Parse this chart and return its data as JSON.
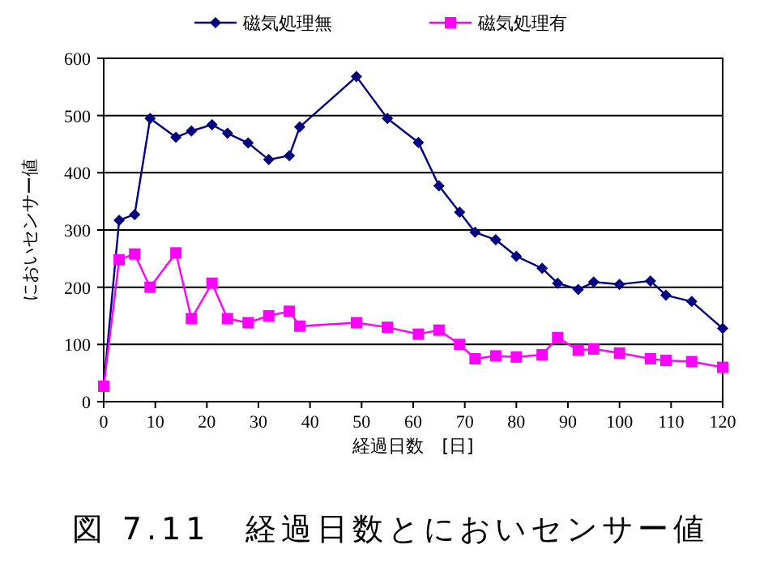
{
  "chart_data": {
    "type": "line",
    "title": "図 7.11　経過日数とにおいセンサー値",
    "xlabel": "経過日数　[日]",
    "ylabel": "においセンサー値",
    "x": [
      0,
      3,
      6,
      9,
      14,
      17,
      21,
      24,
      28,
      32,
      36,
      38,
      49,
      55,
      61,
      65,
      69,
      72,
      76,
      80,
      85,
      88,
      92,
      95,
      100,
      106,
      109,
      114,
      120
    ],
    "series": [
      {
        "name": "磁気処理無",
        "color": "#000080",
        "marker": "diamond",
        "values": [
          27,
          317,
          327,
          495,
          462,
          473,
          484,
          469,
          452,
          423,
          430,
          480,
          568,
          495,
          453,
          377,
          331,
          296,
          283,
          254,
          233,
          207,
          196,
          209,
          205,
          211,
          186,
          175,
          128
        ]
      },
      {
        "name": "磁気処理有",
        "color": "#ff00ff",
        "marker": "square",
        "values": [
          27,
          248,
          258,
          200,
          260,
          145,
          207,
          145,
          138,
          150,
          158,
          132,
          138,
          130,
          118,
          125,
          100,
          75,
          80,
          78,
          82,
          112,
          90,
          92,
          85,
          75,
          72,
          70,
          60
        ]
      }
    ],
    "xlim": [
      0,
      120
    ],
    "xticks": [
      0,
      10,
      20,
      30,
      40,
      50,
      60,
      70,
      80,
      90,
      100,
      110,
      120
    ],
    "ylim": [
      0,
      600
    ],
    "yticks": [
      0,
      100,
      200,
      300,
      400,
      500,
      600
    ],
    "grid": "y",
    "legend": "top",
    "line_style": "solid"
  }
}
